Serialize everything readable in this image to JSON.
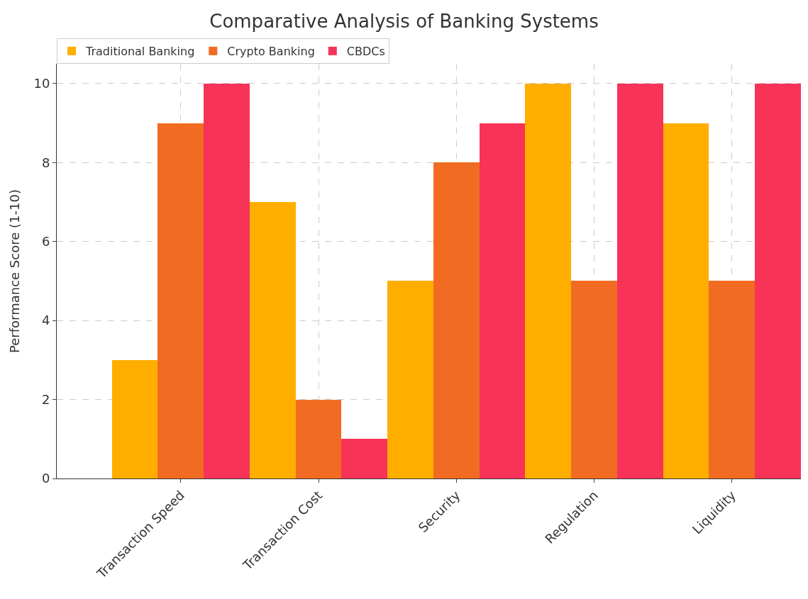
{
  "chart_data": {
    "type": "bar",
    "title": "Comparative Analysis of Banking Systems",
    "ylabel": "Performance Score (1-10)",
    "categories": [
      "Transaction Speed",
      "Transaction Cost",
      "Security",
      "Regulation",
      "Liquidity"
    ],
    "series": [
      {
        "name": "Traditional Banking",
        "color": "#ffae00",
        "values": [
          3,
          7,
          5,
          10,
          9
        ]
      },
      {
        "name": "Crypto Banking",
        "color": "#f26b22",
        "values": [
          9,
          2,
          8,
          5,
          5
        ]
      },
      {
        "name": "CBDCs",
        "color": "#f73357",
        "values": [
          10,
          1,
          9,
          10,
          10
        ]
      }
    ],
    "ylim": [
      0,
      10.5
    ],
    "yticks": [
      0,
      2,
      4,
      6,
      8,
      10
    ],
    "grid": true,
    "legend": "top left"
  }
}
